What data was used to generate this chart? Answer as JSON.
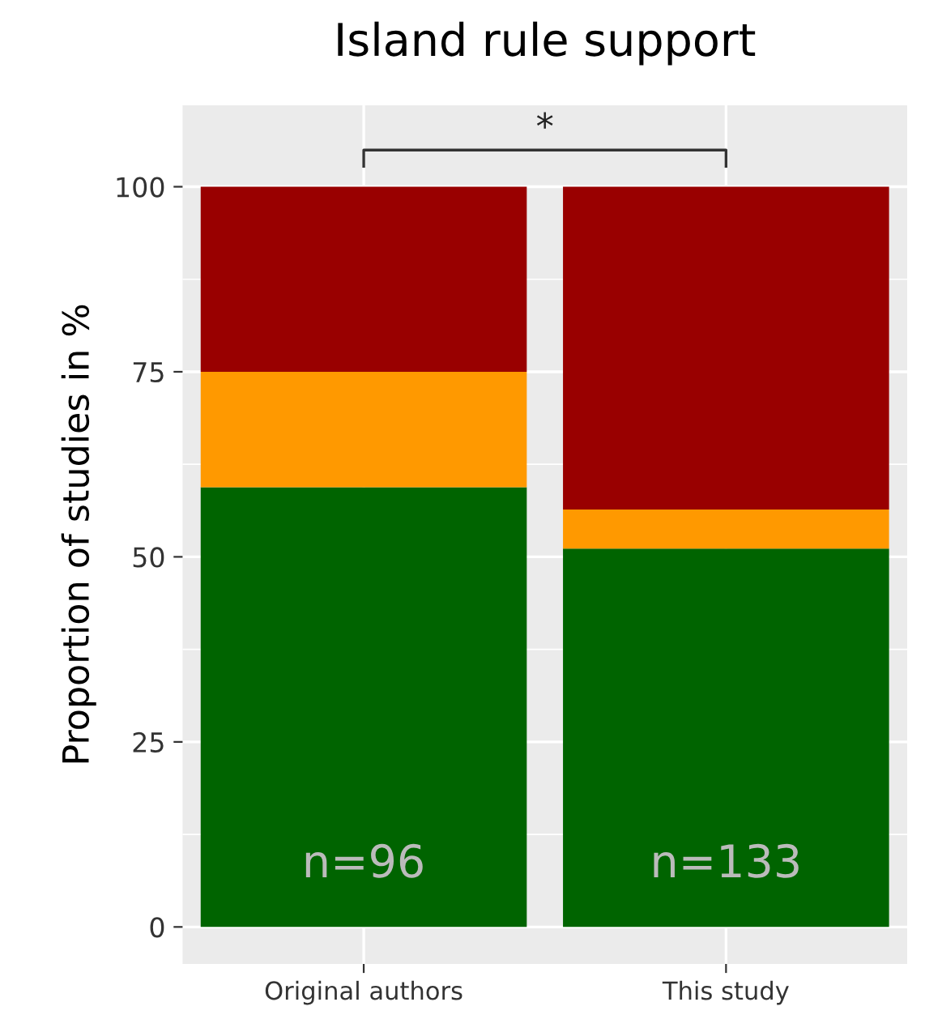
{
  "chart_data": {
    "type": "bar",
    "title": "Island rule support",
    "ylabel": "Proportion of studies in %",
    "categories": [
      "Original authors",
      "This study"
    ],
    "stacked": true,
    "series": [
      {
        "color": "#006400",
        "values": [
          59.4,
          51.1
        ]
      },
      {
        "color": "#ff9900",
        "values": [
          15.6,
          5.3
        ]
      },
      {
        "color": "#990000",
        "values": [
          25.0,
          43.6
        ]
      }
    ],
    "ylim": [
      -5,
      111
    ],
    "yticks": [
      0,
      25,
      50,
      75,
      100
    ],
    "grid": true,
    "annotations": [
      "*",
      "n=96",
      "n=133"
    ]
  }
}
